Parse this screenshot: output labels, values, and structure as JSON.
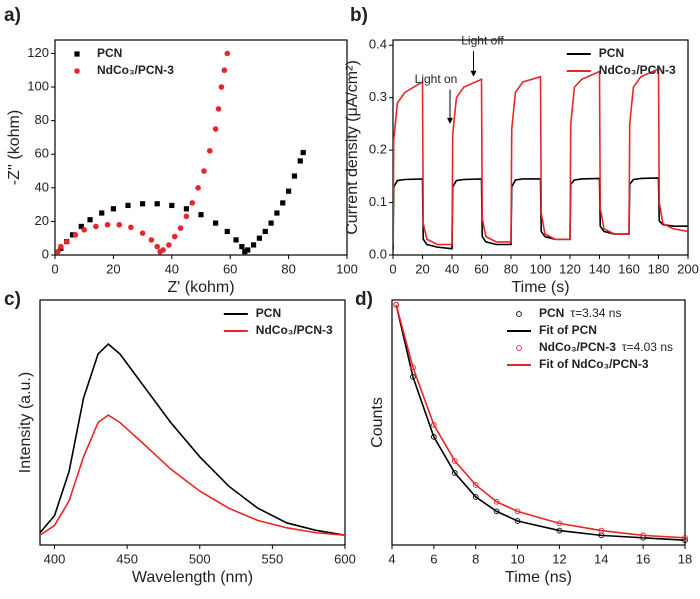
{
  "chart_data": [
    {
      "label": "a)",
      "type": "scatter",
      "xlabel": "Z' (kohm)",
      "ylabel": "-Z'' (kohm)",
      "xlim": [
        0,
        100
      ],
      "xticks": [
        0,
        20,
        40,
        60,
        80,
        100
      ],
      "ylim": [
        0,
        128
      ],
      "yticks": [
        0,
        20,
        40,
        60,
        80,
        100,
        120
      ],
      "legend": "upper left",
      "series": [
        {
          "name": "PCN",
          "color": "#000000",
          "mode": "markers",
          "marker": "square",
          "x": [
            2,
            4,
            6,
            9,
            12,
            16,
            20,
            25,
            30,
            35,
            40,
            45,
            50,
            55,
            59,
            62,
            64,
            65,
            66,
            68,
            70,
            72,
            74,
            76,
            78,
            80,
            82,
            84,
            85
          ],
          "values": [
            4,
            8,
            12,
            17,
            21,
            25,
            27.5,
            29.5,
            30.5,
            30.5,
            29.5,
            27.5,
            24,
            19,
            14,
            9,
            5,
            2,
            3,
            6,
            10,
            14,
            19,
            25,
            31,
            38,
            47,
            56,
            61
          ]
        },
        {
          "name": "NdCo₃/PCN-3",
          "color": "#e8262a",
          "mode": "markers",
          "marker": "circle",
          "x": [
            1,
            2,
            4,
            7,
            10,
            14,
            18,
            22,
            26,
            30,
            33,
            35,
            36,
            37,
            39,
            41,
            43,
            45,
            47,
            49,
            51,
            53,
            55,
            56,
            57,
            58,
            59
          ],
          "values": [
            2,
            5,
            8,
            12,
            15,
            17,
            18,
            18,
            16.5,
            13,
            9,
            5,
            2,
            3,
            6,
            11,
            16,
            23,
            31,
            40,
            50,
            62,
            75,
            87,
            100,
            110,
            120
          ]
        }
      ]
    },
    {
      "label": "b)",
      "type": "line",
      "xlabel": "Time (s)",
      "ylabel": "Current density (μA/cm²)",
      "xlim": [
        0,
        200
      ],
      "xticks": [
        0,
        20,
        40,
        60,
        80,
        100,
        120,
        140,
        160,
        180,
        200
      ],
      "ylim": [
        0,
        0.41
      ],
      "yticks": [
        {
          "value": 0,
          "label": "0.0"
        },
        0.1,
        0.2,
        0.3,
        0.4
      ],
      "legend": "upper right",
      "annotations": [
        "Light on",
        "Light off"
      ],
      "x": [
        0,
        0.5,
        3,
        8,
        20,
        20.5,
        23,
        30,
        40,
        40.5,
        43,
        48,
        60,
        60.5,
        63,
        70,
        80,
        80.5,
        83,
        88,
        100,
        100.5,
        103,
        110,
        120,
        120.5,
        123,
        128,
        140,
        140.5,
        143,
        150,
        160,
        160.5,
        163,
        168,
        180,
        180.5,
        183,
        190,
        200
      ],
      "series": [
        {
          "name": "PCN",
          "color": "#000000",
          "mode": "line",
          "values": [
            0.01,
            0.13,
            0.142,
            0.144,
            0.145,
            0.03,
            0.02,
            0.015,
            0.012,
            0.13,
            0.142,
            0.144,
            0.145,
            0.035,
            0.025,
            0.02,
            0.02,
            0.13,
            0.143,
            0.145,
            0.145,
            0.045,
            0.035,
            0.03,
            0.03,
            0.135,
            0.143,
            0.145,
            0.146,
            0.055,
            0.045,
            0.04,
            0.04,
            0.135,
            0.144,
            0.146,
            0.147,
            0.065,
            0.058,
            0.055,
            0.055
          ]
        },
        {
          "name": "NdCo₃/PCN-3",
          "color": "#e8262a",
          "mode": "line",
          "values": [
            0.02,
            0.22,
            0.29,
            0.31,
            0.33,
            0.06,
            0.03,
            0.02,
            0.02,
            0.23,
            0.3,
            0.32,
            0.335,
            0.07,
            0.035,
            0.025,
            0.025,
            0.24,
            0.31,
            0.33,
            0.34,
            0.08,
            0.04,
            0.03,
            0.03,
            0.25,
            0.32,
            0.335,
            0.35,
            0.09,
            0.05,
            0.04,
            0.04,
            0.25,
            0.32,
            0.34,
            0.355,
            0.1,
            0.06,
            0.05,
            0.045
          ]
        }
      ]
    },
    {
      "label": "c)",
      "type": "line",
      "xlabel": "Wavelength (nm)",
      "ylabel": "Intensity (a.u.)",
      "xlim": [
        390,
        600
      ],
      "xticks": [
        400,
        450,
        500,
        550,
        600
      ],
      "ylim": [
        0,
        1
      ],
      "legend": "upper right",
      "x": [
        390,
        400,
        410,
        420,
        430,
        437,
        445,
        460,
        480,
        500,
        520,
        540,
        560,
        580,
        600
      ],
      "series": [
        {
          "name": "PCN",
          "color": "#000000",
          "mode": "line",
          "values": [
            0.05,
            0.12,
            0.3,
            0.6,
            0.78,
            0.82,
            0.78,
            0.66,
            0.5,
            0.36,
            0.24,
            0.15,
            0.09,
            0.06,
            0.04
          ]
        },
        {
          "name": "NdCo₃/PCN-3",
          "color": "#e8262a",
          "mode": "line",
          "values": [
            0.04,
            0.08,
            0.18,
            0.36,
            0.5,
            0.53,
            0.5,
            0.42,
            0.31,
            0.22,
            0.15,
            0.1,
            0.07,
            0.05,
            0.04
          ]
        }
      ]
    },
    {
      "label": "d)",
      "type": "line",
      "xlabel": "Time (ns)",
      "ylabel": "Counts",
      "xlim": [
        4,
        18
      ],
      "xticks": [
        4,
        6,
        8,
        10,
        12,
        14,
        16,
        18
      ],
      "ylim": [
        0,
        1.02
      ],
      "legend": "upper right",
      "x": [
        4.2,
        5,
        6,
        7,
        8,
        9,
        10,
        12,
        14,
        16,
        18
      ],
      "series": [
        {
          "name": "PCN",
          "tau": "τ=3.34 ns",
          "color": "#000000",
          "mode": "markers",
          "marker": "open-circle",
          "values": [
            1.0,
            0.7,
            0.45,
            0.3,
            0.2,
            0.14,
            0.1,
            0.06,
            0.04,
            0.03,
            0.02
          ]
        },
        {
          "name": "Fit of PCN",
          "color": "#000000",
          "mode": "line",
          "values": [
            1.0,
            0.7,
            0.45,
            0.3,
            0.2,
            0.14,
            0.1,
            0.06,
            0.04,
            0.03,
            0.02
          ]
        },
        {
          "name": "NdCo₃/PCN-3",
          "tau": "τ=4.03 ns",
          "color": "#e8262a",
          "mode": "markers",
          "marker": "open-circle",
          "values": [
            1.0,
            0.74,
            0.5,
            0.35,
            0.25,
            0.18,
            0.14,
            0.09,
            0.06,
            0.04,
            0.03
          ]
        },
        {
          "name": "Fit of NdCo₃/PCN-3",
          "color": "#e8262a",
          "mode": "line",
          "values": [
            1.0,
            0.74,
            0.5,
            0.35,
            0.25,
            0.18,
            0.14,
            0.09,
            0.06,
            0.04,
            0.03
          ]
        }
      ]
    }
  ]
}
